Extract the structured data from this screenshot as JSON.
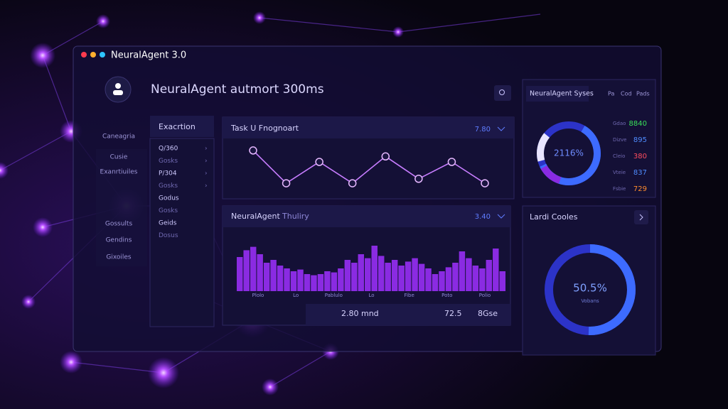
{
  "window": {
    "title": "NeuralAgent 3.0"
  },
  "header": {
    "title": "NeuralAgent autmort 300ms"
  },
  "sidebar": {
    "items": [
      "Caneagria",
      "Cusie",
      "Exanrtiuiles",
      "Gossults",
      "Gendins",
      "Gixoiles"
    ]
  },
  "execution": {
    "title": "Exacrtion",
    "items": [
      "Q/360",
      "Gosks",
      "P/304",
      "Gosks",
      "Godus",
      "Gosks",
      "Geids",
      "Dosus"
    ]
  },
  "task_chart": {
    "type": "line",
    "title": "Task U Fnognoart",
    "value": "7.80",
    "color": "#c77dff",
    "values": [
      83,
      17,
      60,
      17,
      71,
      26,
      60,
      17
    ]
  },
  "bar_chart": {
    "type": "bar",
    "title": "NeuralAgent",
    "subtitle": "Thuliry",
    "value": "3.40",
    "color": "#8a2be2",
    "values": [
      60,
      72,
      78,
      65,
      50,
      55,
      45,
      40,
      35,
      38,
      30,
      28,
      30,
      35,
      33,
      40,
      55,
      50,
      65,
      58,
      80,
      62,
      50,
      55,
      45,
      52,
      58,
      48,
      40,
      30,
      35,
      42,
      50,
      70,
      58,
      45,
      40,
      55,
      75,
      35
    ],
    "axis_labels": [
      "Plolo",
      "Lo",
      "Pablulo",
      "Lo",
      "Fibe",
      "Poto",
      "Polio"
    ]
  },
  "footer": {
    "items": [
      "2.80 mnd",
      "72.5",
      "8Gse"
    ]
  },
  "status": {
    "title": "NeuralAgent Syses",
    "tabs": [
      "Pa",
      "Cod",
      "Pads"
    ],
    "gauge_label": "2116%",
    "rows": [
      {
        "label": "Gdao",
        "value": "8840",
        "color": "#39e05a"
      },
      {
        "label": "Dizve",
        "value": "895",
        "color": "#4f8cff"
      },
      {
        "label": "Cleio",
        "value": "380",
        "color": "#ff4d5e"
      },
      {
        "label": "Vteie",
        "value": "837",
        "color": "#4f8cff"
      },
      {
        "label": "Fsbie",
        "value": "729",
        "color": "#ff8c2e"
      }
    ]
  },
  "usage": {
    "title": "Lardi Cooles",
    "value": 50.5,
    "value_label": "50.5%",
    "caption": "Vobans",
    "color": "#3d6bff"
  }
}
